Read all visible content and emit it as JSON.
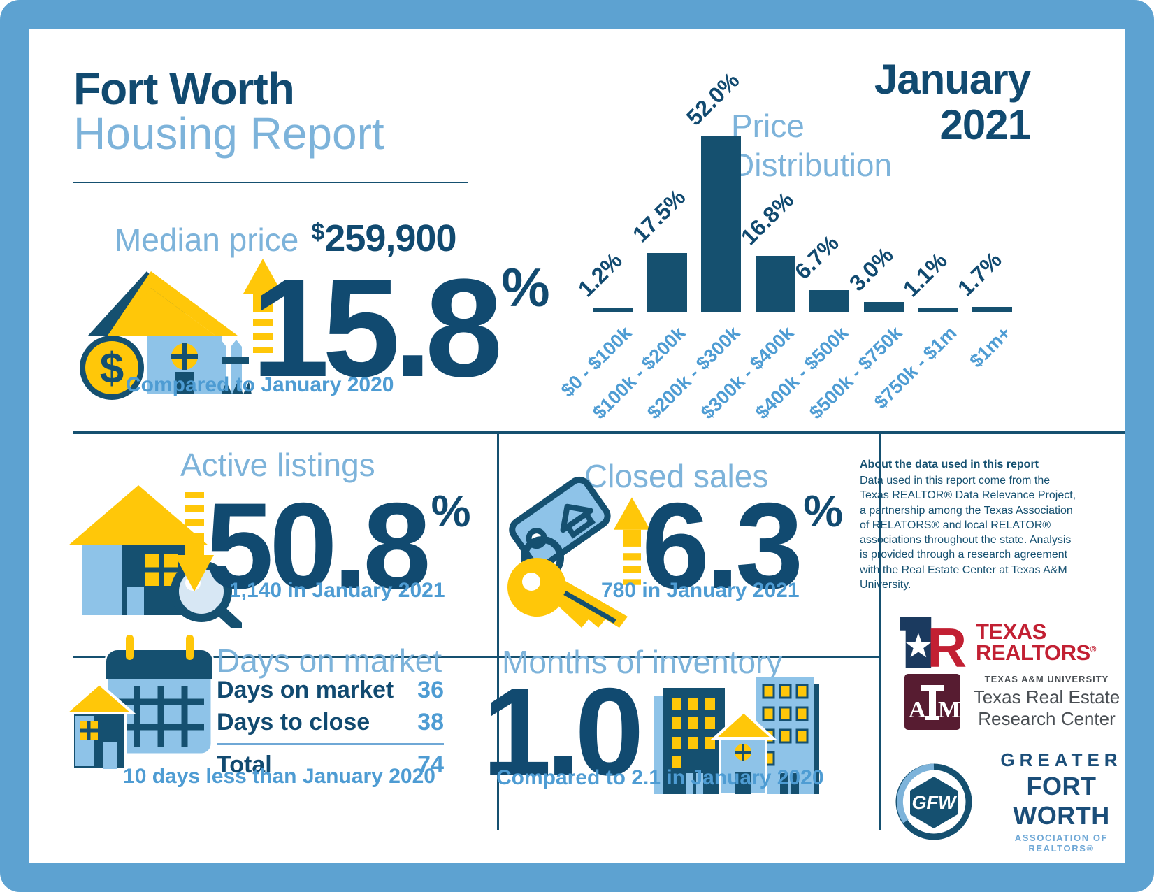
{
  "header": {
    "title_line1": "Fort Worth",
    "title_line2": "Housing Report",
    "period_line1": "January",
    "period_line2": "2021"
  },
  "median_price": {
    "label": "Median price",
    "currency": "$",
    "amount": "259,900",
    "pct": "15.8",
    "unit": "%",
    "note": "Compared to January 2020"
  },
  "chart_data": {
    "type": "bar",
    "title": "Price Distribution",
    "title_lines": [
      "Price",
      "Distribution"
    ],
    "categories": [
      "$0 - $100k",
      "$100k - $200k",
      "$200k - $300k",
      "$300k - $400k",
      "$400k - $500k",
      "$500k - $750k",
      "$750k - $1m",
      "$1m+"
    ],
    "values": [
      1.2,
      17.5,
      52.0,
      16.8,
      6.7,
      3.0,
      1.1,
      1.7
    ],
    "value_labels": [
      "1.2%",
      "17.5%",
      "52.0%",
      "16.8%",
      "6.7%",
      "3.0%",
      "1.1%",
      "1.7%"
    ],
    "unit": "%",
    "xlabel": "",
    "ylabel": "",
    "ylim": [
      0,
      52
    ],
    "grid": false,
    "legend": false,
    "bar_color": "#15506F",
    "value_label_color": "#114A70",
    "category_label_color": "#4E9CD3"
  },
  "active_listings": {
    "label": "Active listings",
    "pct": "50.8",
    "unit": "%",
    "direction": "down",
    "note": "1,140 in January 2021"
  },
  "closed_sales": {
    "label": "Closed sales",
    "pct": "6.3",
    "unit": "%",
    "direction": "up",
    "note": "780 in January 2021"
  },
  "days_on_market": {
    "label": "Days on market",
    "rows": [
      {
        "label": "Days on market",
        "value": "36"
      },
      {
        "label": "Days to close",
        "value": "38"
      }
    ],
    "total_label": "Total",
    "total_value": "74",
    "note": "10 days less than January 2020"
  },
  "months_of_inventory": {
    "label": "Months of inventory",
    "value": "1.0",
    "note": "Compared to 2.1 in January 2020"
  },
  "about": {
    "heading": "About the data used in this report",
    "body": "Data used in this report come from the Texas REALTOR® Data Relevance Project, a partnership among the Texas Association of RELATORS® and local RELATOR® associations throughout the state. Analysis is provided through a research agreement with the Real Estate Center at Texas A&M University."
  },
  "logos": {
    "texas_realtors": {
      "line1": "TEXAS",
      "line2": "REALTORS",
      "reg": "®"
    },
    "tamu": {
      "university": "TEXAS A&M UNIVERSITY",
      "center_line1": "Texas Real Estate",
      "center_line2": "Research Center",
      "monogram": "ATM"
    },
    "gfw": {
      "line1": "GREATER",
      "line2": "FORT WORTH",
      "line3": "ASSOCIATION OF REALTORS®",
      "monogram": "GFW"
    }
  },
  "colors": {
    "frame_blue": "#5DA2D1",
    "navy": "#114A70",
    "bar_navy": "#15506F",
    "light_blue": "#7DB3DA",
    "medium_blue": "#4E9CD3",
    "yellow": "#FFC709",
    "realtors_red": "#C22033",
    "tamu_maroon": "#571C31"
  }
}
